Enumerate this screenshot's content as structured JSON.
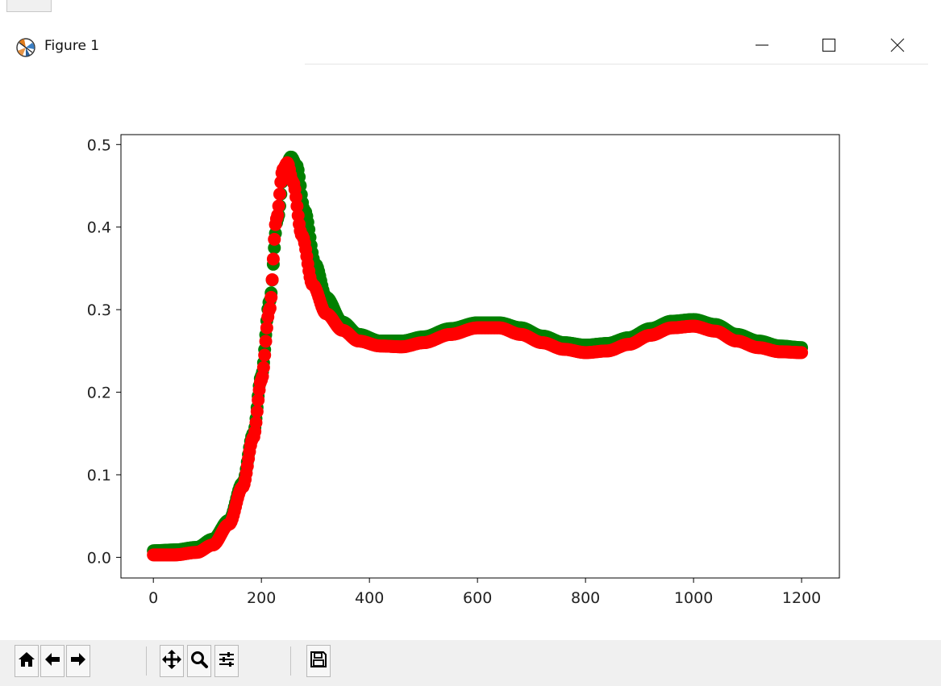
{
  "window": {
    "title": "Figure 1",
    "icon": "matplotlib-logo-icon",
    "controls": [
      "minimize-icon",
      "maximize-icon",
      "close-icon"
    ]
  },
  "toolbar": {
    "buttons": [
      {
        "name": "home-button",
        "icon": "home-icon"
      },
      {
        "name": "back-button",
        "icon": "arrow-left-icon"
      },
      {
        "name": "forward-button",
        "icon": "arrow-right-icon"
      },
      {
        "name": "pan-button",
        "icon": "move-icon"
      },
      {
        "name": "zoom-button",
        "icon": "magnifier-icon"
      },
      {
        "name": "configure-subplots-button",
        "icon": "sliders-icon"
      },
      {
        "name": "save-button",
        "icon": "floppy-disk-icon"
      }
    ]
  },
  "chart_data": {
    "type": "scatter",
    "xlim": [
      -60,
      1270
    ],
    "ylim": [
      -0.025,
      0.512
    ],
    "x_ticks": [
      0,
      200,
      400,
      600,
      800,
      1000,
      1200
    ],
    "y_ticks": [
      0.0,
      0.1,
      0.2,
      0.3,
      0.4,
      0.5
    ],
    "x_tick_labels": [
      "0",
      "200",
      "400",
      "600",
      "800",
      "1000",
      "1200"
    ],
    "y_tick_labels": [
      "0.0",
      "0.1",
      "0.2",
      "0.3",
      "0.4",
      "0.5"
    ],
    "grid": false,
    "series": [
      {
        "color": "#008000",
        "points": [
          [
            0,
            0.008
          ],
          [
            40,
            0.009
          ],
          [
            80,
            0.012
          ],
          [
            110,
            0.022
          ],
          [
            140,
            0.045
          ],
          [
            165,
            0.09
          ],
          [
            185,
            0.15
          ],
          [
            200,
            0.22
          ],
          [
            215,
            0.31
          ],
          [
            230,
            0.41
          ],
          [
            242,
            0.47
          ],
          [
            255,
            0.485
          ],
          [
            265,
            0.475
          ],
          [
            280,
            0.42
          ],
          [
            300,
            0.355
          ],
          [
            320,
            0.315
          ],
          [
            350,
            0.285
          ],
          [
            380,
            0.27
          ],
          [
            420,
            0.262
          ],
          [
            460,
            0.262
          ],
          [
            500,
            0.267
          ],
          [
            550,
            0.277
          ],
          [
            600,
            0.284
          ],
          [
            640,
            0.284
          ],
          [
            680,
            0.278
          ],
          [
            720,
            0.268
          ],
          [
            760,
            0.26
          ],
          [
            800,
            0.257
          ],
          [
            840,
            0.259
          ],
          [
            880,
            0.266
          ],
          [
            920,
            0.277
          ],
          [
            960,
            0.286
          ],
          [
            1000,
            0.288
          ],
          [
            1040,
            0.282
          ],
          [
            1080,
            0.27
          ],
          [
            1120,
            0.262
          ],
          [
            1160,
            0.256
          ],
          [
            1200,
            0.254
          ]
        ]
      },
      {
        "color": "#ff0000",
        "points": [
          [
            0,
            0.003
          ],
          [
            40,
            0.003
          ],
          [
            80,
            0.006
          ],
          [
            110,
            0.015
          ],
          [
            140,
            0.04
          ],
          [
            165,
            0.085
          ],
          [
            185,
            0.145
          ],
          [
            200,
            0.215
          ],
          [
            215,
            0.3
          ],
          [
            228,
            0.41
          ],
          [
            240,
            0.47
          ],
          [
            248,
            0.478
          ],
          [
            258,
            0.455
          ],
          [
            275,
            0.39
          ],
          [
            295,
            0.33
          ],
          [
            320,
            0.295
          ],
          [
            350,
            0.275
          ],
          [
            380,
            0.262
          ],
          [
            420,
            0.256
          ],
          [
            460,
            0.255
          ],
          [
            500,
            0.26
          ],
          [
            550,
            0.27
          ],
          [
            600,
            0.278
          ],
          [
            640,
            0.278
          ],
          [
            680,
            0.27
          ],
          [
            720,
            0.26
          ],
          [
            760,
            0.252
          ],
          [
            800,
            0.248
          ],
          [
            840,
            0.25
          ],
          [
            880,
            0.258
          ],
          [
            920,
            0.269
          ],
          [
            960,
            0.278
          ],
          [
            1000,
            0.28
          ],
          [
            1040,
            0.274
          ],
          [
            1080,
            0.262
          ],
          [
            1120,
            0.254
          ],
          [
            1160,
            0.249
          ],
          [
            1200,
            0.248
          ]
        ]
      }
    ]
  }
}
